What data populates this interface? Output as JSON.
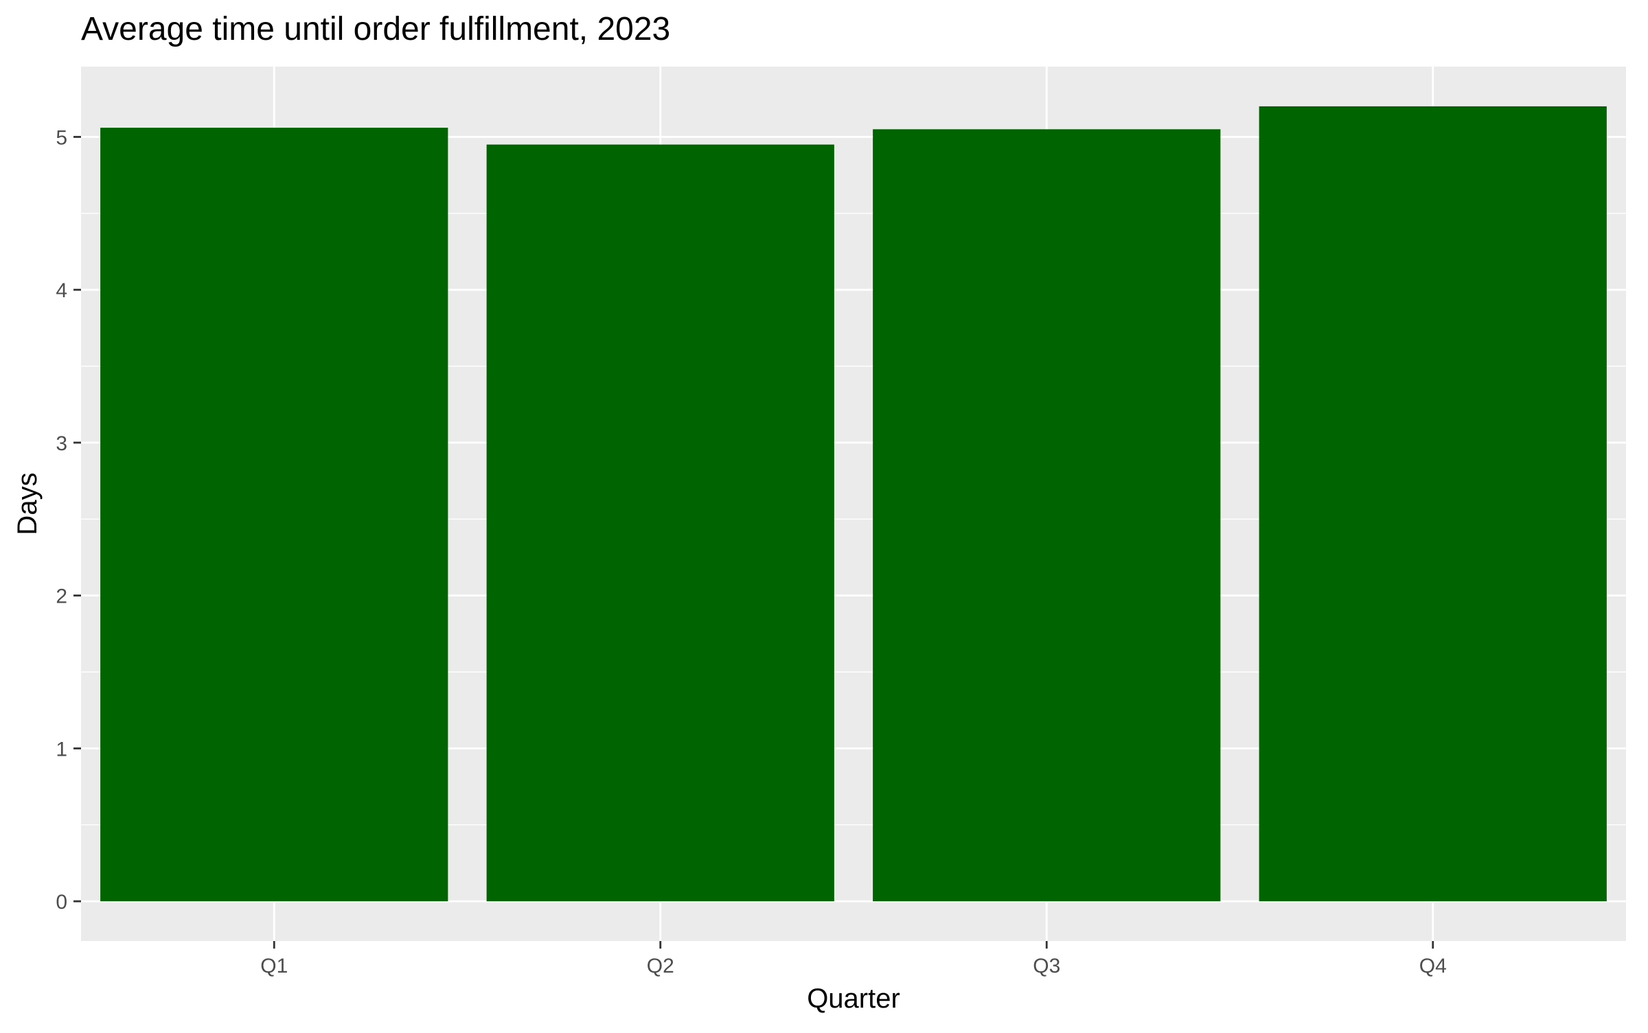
{
  "chart_data": {
    "type": "bar",
    "title": "Average time until order fulfillment, 2023",
    "xlabel": "Quarter",
    "ylabel": "Days",
    "categories": [
      "Q1",
      "Q2",
      "Q3",
      "Q4"
    ],
    "values": [
      5.06,
      4.95,
      5.05,
      5.2
    ],
    "ylim": [
      -0.26,
      5.46
    ],
    "yticks": [
      0,
      1,
      2,
      3,
      4,
      5
    ],
    "grid": true,
    "legend": "none",
    "colors": {
      "bar": "#006400",
      "panel_background": "#EBEBEB",
      "grid": "#FFFFFF",
      "tick_text": "#4D4D4D",
      "tick_mark": "#333333",
      "title_text": "#000000"
    }
  }
}
